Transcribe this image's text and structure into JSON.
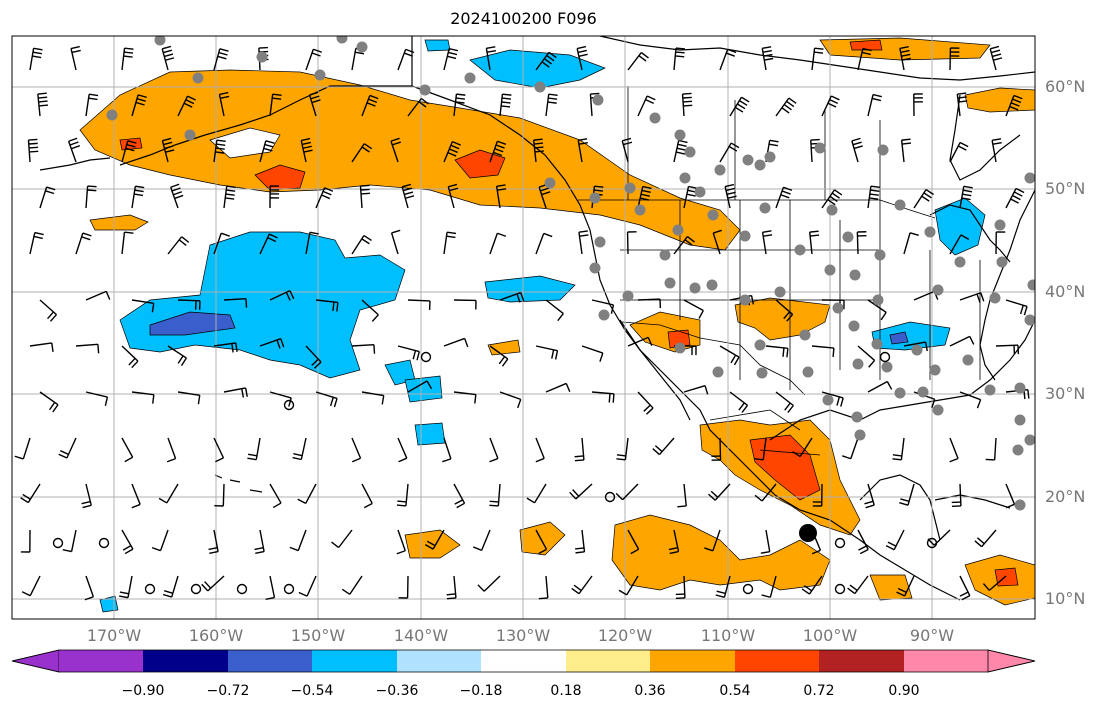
{
  "title": "2024100200 F096",
  "map": {
    "projection": "PlateCarree",
    "extent_lon": [
      -180,
      -80
    ],
    "extent_lat": [
      8,
      65
    ],
    "ocean_color": "#ffffff",
    "coastline_color": "#000000",
    "gridline_color": "#b0b0b0"
  },
  "latitude_labels": [
    "60°N",
    "50°N",
    "40°N",
    "30°N",
    "20°N",
    "10°N"
  ],
  "longitude_labels": [
    "170°W",
    "160°W",
    "150°W",
    "140°W",
    "130°W",
    "120°W",
    "110°W",
    "100°W",
    "90°W"
  ],
  "colorbar": {
    "labels": [
      "−0.90",
      "−0.72",
      "−0.54",
      "−0.36",
      "−0.18",
      "0.18",
      "0.36",
      "0.54",
      "0.72",
      "0.90"
    ],
    "colors": [
      "#9932cc",
      "#00008b",
      "#3a5fcd",
      "#00bfff",
      "#b0e2ff",
      "#ffffff",
      "#ffec8b",
      "#ffa500",
      "#ff4500",
      "#b22222",
      "#ff88aa"
    ],
    "extend": "both"
  },
  "legend_markers": {
    "gray_dot_color": "#808080",
    "calm_circle_color": "#000000",
    "large_dot_color": "#000000"
  }
}
